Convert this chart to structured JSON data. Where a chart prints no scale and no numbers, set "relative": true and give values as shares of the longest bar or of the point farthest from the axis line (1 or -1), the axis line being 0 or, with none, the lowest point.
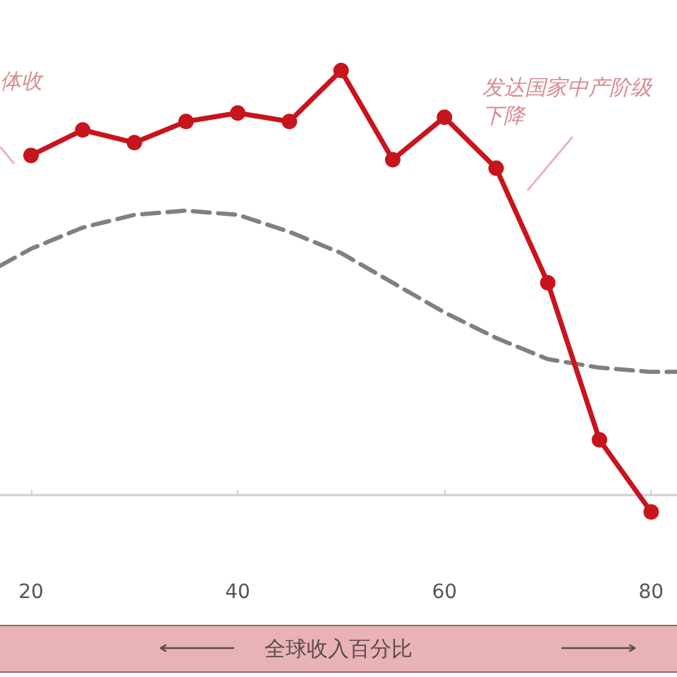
{
  "chart_data": {
    "type": "line",
    "relative": true,
    "xlabel": "全球收入百分比",
    "annotations": [
      "体收",
      "发达国家中产阶级下降"
    ],
    "xlim": [
      17,
      82.5
    ],
    "xticks": [
      20,
      40,
      60,
      80
    ],
    "grid": false,
    "series": [
      {
        "color": "#c8141c",
        "marker": "circle",
        "line_style": "solid",
        "x": [
          20,
          25,
          30,
          35,
          40,
          45,
          50,
          55,
          60,
          65,
          70,
          75,
          80
        ],
        "values": [
          0.8,
          0.86,
          0.83,
          0.88,
          0.9,
          0.88,
          1,
          0.79,
          0.89,
          0.77,
          0.5,
          0.13,
          -0.04
        ]
      },
      {
        "color": "#7f807f",
        "marker": "none",
        "line_style": "dashed",
        "x": [
          17,
          20,
          25,
          30,
          35,
          40,
          45,
          50,
          55,
          60,
          65,
          70,
          75,
          80,
          82.5
        ],
        "values": [
          0.54,
          0.58,
          0.63,
          0.66,
          0.67,
          0.66,
          0.62,
          0.57,
          0.5,
          0.43,
          0.37,
          0.32,
          0.3,
          0.29,
          0.29
        ]
      }
    ]
  }
}
